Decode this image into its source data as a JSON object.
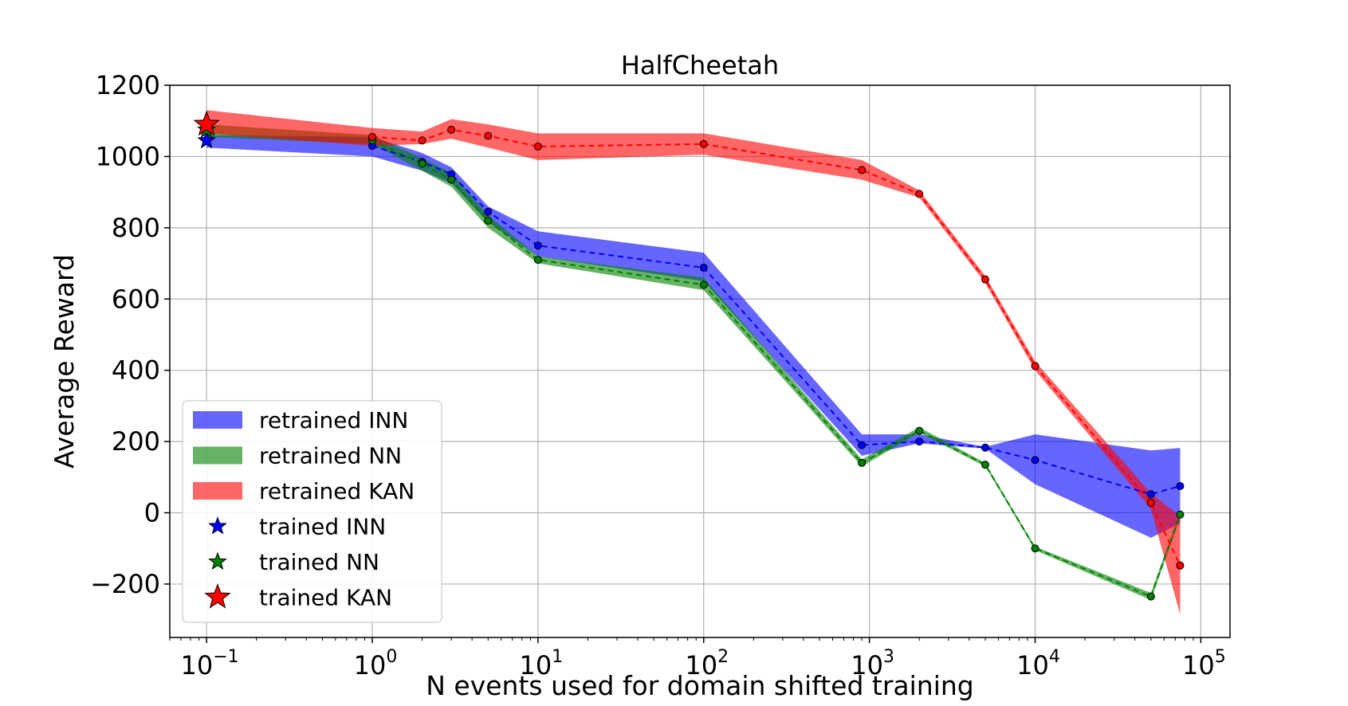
{
  "chart_data": {
    "type": "line",
    "title": "HalfCheetah",
    "xlabel": "N events used for domain shifted training",
    "ylabel": "Average Reward",
    "xscale": "log",
    "xlim": [
      0.06,
      150000
    ],
    "ylim": [
      -350,
      1200
    ],
    "yticks": [
      -200,
      0,
      200,
      400,
      600,
      800,
      1000,
      1200
    ],
    "ytick_labels": [
      "−200",
      "0",
      "200",
      "400",
      "600",
      "800",
      "1000",
      "1200"
    ],
    "xticks": [
      0.1,
      1,
      10,
      100,
      1000,
      10000,
      100000
    ],
    "xtick_labels": [
      {
        "base": "10",
        "exp": "−1"
      },
      {
        "base": "10",
        "exp": "0"
      },
      {
        "base": "10",
        "exp": "1"
      },
      {
        "base": "10",
        "exp": "2"
      },
      {
        "base": "10",
        "exp": "3"
      },
      {
        "base": "10",
        "exp": "4"
      },
      {
        "base": "10",
        "exp": "5"
      }
    ],
    "grid": true,
    "legend_position": "lower-left",
    "series": [
      {
        "name": "retrained INN",
        "color": "#0000ff",
        "x": [
          1,
          2,
          3,
          5,
          10,
          100,
          900,
          2000,
          5000,
          10000,
          50000,
          75000
        ],
        "y": [
          1030,
          985,
          950,
          845,
          750,
          688,
          190,
          200,
          183,
          148,
          52,
          75
        ],
        "lower": [
          1000,
          960,
          925,
          815,
          720,
          650,
          160,
          195,
          180,
          80,
          -70,
          -30
        ],
        "upper": [
          1055,
          1010,
          970,
          860,
          790,
          730,
          220,
          220,
          185,
          220,
          175,
          182
        ]
      },
      {
        "name": "retrained NN",
        "color": "#008000",
        "x": [
          1,
          2,
          3,
          5,
          10,
          100,
          900,
          2000,
          5000,
          10000,
          50000,
          75000
        ],
        "y": [
          1045,
          980,
          935,
          820,
          710,
          640,
          140,
          230,
          135,
          -100,
          -235,
          -5
        ],
        "lower": [
          1035,
          960,
          915,
          800,
          700,
          625,
          130,
          225,
          130,
          -105,
          -245,
          -15
        ],
        "upper": [
          1060,
          995,
          955,
          835,
          720,
          660,
          150,
          240,
          140,
          -95,
          -225,
          5
        ]
      },
      {
        "name": "retrained KAN",
        "color": "#ff0000",
        "x": [
          1,
          2,
          3,
          5,
          10,
          100,
          900,
          2000,
          5000,
          10000,
          50000,
          75000
        ],
        "y": [
          1055,
          1045,
          1075,
          1058,
          1028,
          1035,
          962,
          895,
          655,
          412,
          28,
          -148
        ],
        "lower": [
          1030,
          1035,
          1050,
          1025,
          990,
          1005,
          935,
          885,
          645,
          400,
          10,
          -285
        ],
        "upper": [
          1080,
          1070,
          1105,
          1090,
          1065,
          1065,
          990,
          905,
          665,
          425,
          55,
          -10
        ]
      }
    ],
    "trained_points": [
      {
        "name": "trained INN",
        "x": 0.1,
        "y": 1045,
        "color": "#0000ff",
        "size": "small"
      },
      {
        "name": "trained NN",
        "x": 0.1,
        "y": 1075,
        "color": "#008000",
        "size": "small"
      },
      {
        "name": "trained KAN",
        "x": 0.1,
        "y": 1090,
        "color": "#ff0000",
        "size": "large"
      }
    ],
    "band_starts": [
      {
        "series": "retrained INN",
        "x": 0.1,
        "lower": 1025,
        "upper": 1060
      },
      {
        "series": "retrained NN",
        "x": 0.1,
        "lower": 1055,
        "upper": 1090
      },
      {
        "series": "retrained KAN",
        "x": 0.1,
        "lower": 1065,
        "upper": 1130
      }
    ]
  }
}
